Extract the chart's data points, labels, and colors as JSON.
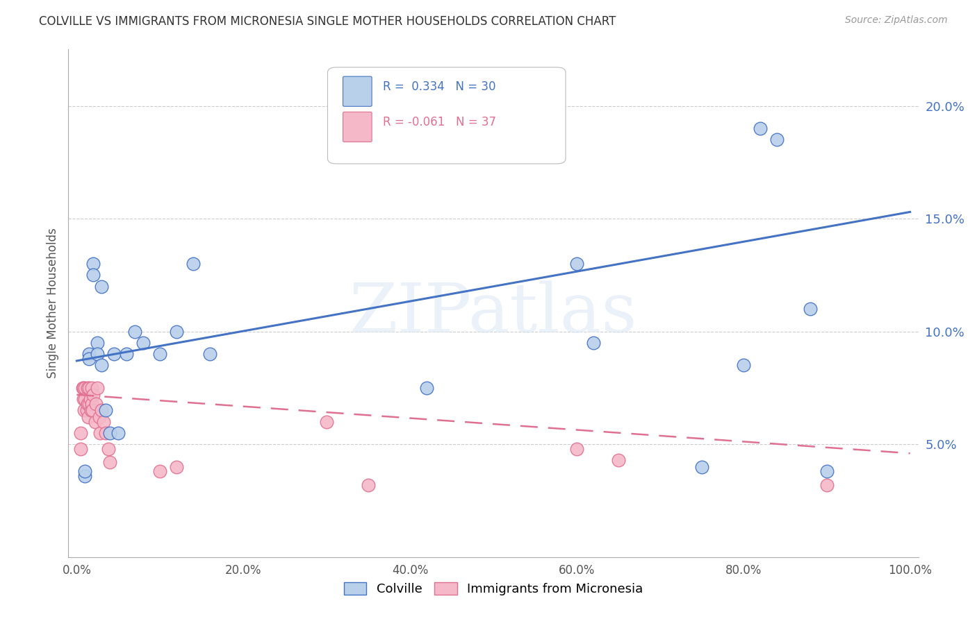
{
  "title": "COLVILLE VS IMMIGRANTS FROM MICRONESIA SINGLE MOTHER HOUSEHOLDS CORRELATION CHART",
  "source": "Source: ZipAtlas.com",
  "ylabel": "Single Mother Households",
  "legend_colville": "Colville",
  "legend_micronesia": "Immigrants from Micronesia",
  "r_colville": 0.334,
  "n_colville": 30,
  "r_micronesia": -0.061,
  "n_micronesia": 37,
  "colville_color": "#b8d0ea",
  "micronesia_color": "#f5b8c8",
  "colville_line_color": "#4472c4",
  "micronesia_line_color": "#e07090",
  "ytick_labels": [
    "5.0%",
    "10.0%",
    "15.0%",
    "20.0%"
  ],
  "ytick_values": [
    0.05,
    0.1,
    0.15,
    0.2
  ],
  "background_color": "#ffffff",
  "watermark": "ZIPatlas",
  "colville_x": [
    0.01,
    0.01,
    0.015,
    0.015,
    0.02,
    0.02,
    0.025,
    0.025,
    0.03,
    0.03,
    0.035,
    0.04,
    0.045,
    0.05,
    0.06,
    0.07,
    0.08,
    0.1,
    0.12,
    0.14,
    0.16,
    0.42,
    0.6,
    0.62,
    0.75,
    0.8,
    0.82,
    0.84,
    0.88,
    0.9
  ],
  "colville_y": [
    0.036,
    0.038,
    0.09,
    0.088,
    0.13,
    0.125,
    0.095,
    0.09,
    0.12,
    0.085,
    0.065,
    0.055,
    0.09,
    0.055,
    0.09,
    0.1,
    0.095,
    0.09,
    0.1,
    0.13,
    0.09,
    0.075,
    0.13,
    0.095,
    0.04,
    0.085,
    0.19,
    0.185,
    0.11,
    0.038
  ],
  "micronesia_x": [
    0.005,
    0.005,
    0.007,
    0.008,
    0.008,
    0.009,
    0.01,
    0.01,
    0.012,
    0.013,
    0.013,
    0.014,
    0.015,
    0.015,
    0.016,
    0.017,
    0.018,
    0.018,
    0.019,
    0.02,
    0.022,
    0.023,
    0.025,
    0.027,
    0.028,
    0.03,
    0.032,
    0.035,
    0.038,
    0.04,
    0.1,
    0.12,
    0.3,
    0.35,
    0.6,
    0.65,
    0.9
  ],
  "micronesia_y": [
    0.055,
    0.048,
    0.075,
    0.075,
    0.07,
    0.065,
    0.075,
    0.07,
    0.065,
    0.075,
    0.068,
    0.062,
    0.075,
    0.068,
    0.07,
    0.065,
    0.075,
    0.068,
    0.065,
    0.072,
    0.06,
    0.068,
    0.075,
    0.062,
    0.055,
    0.065,
    0.06,
    0.055,
    0.048,
    0.042,
    0.038,
    0.04,
    0.06,
    0.032,
    0.048,
    0.043,
    0.032
  ],
  "colville_regression": [
    0.087,
    0.153
  ],
  "micronesia_regression": [
    0.072,
    0.046
  ],
  "xtick_positions": [
    0.0,
    0.2,
    0.4,
    0.6,
    0.8,
    1.0
  ],
  "xtick_labels": [
    "0.0%",
    "20.0%",
    "40.0%",
    "60.0%",
    "80.0%",
    "100.0%"
  ]
}
